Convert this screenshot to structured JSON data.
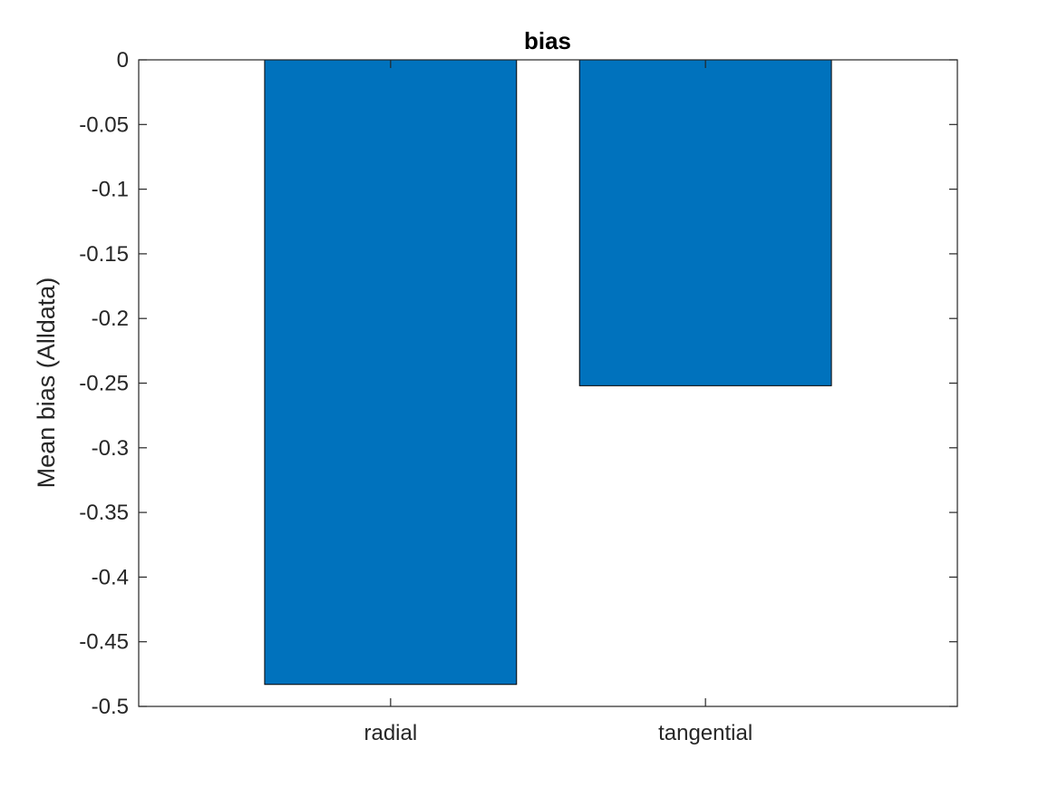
{
  "chart_data": {
    "type": "bar",
    "title": "bias",
    "xlabel": "",
    "ylabel": "Mean bias (Alldata)",
    "categories": [
      "radial",
      "tangential"
    ],
    "values": [
      -0.483,
      -0.252
    ],
    "ylim": [
      -0.5,
      0
    ],
    "yticks": [
      0,
      -0.05,
      -0.1,
      -0.15,
      -0.2,
      -0.25,
      -0.3,
      -0.35,
      -0.4,
      -0.45,
      -0.5
    ],
    "ytick_labels": [
      "0",
      "-0.05",
      "-0.1",
      "-0.15",
      "-0.2",
      "-0.25",
      "-0.3",
      "-0.35",
      "-0.4",
      "-0.45",
      "-0.5"
    ],
    "grid": false,
    "legend": "none",
    "colors": {
      "bar": "#0072BD",
      "bar_edge": "#000000",
      "axis": "#262626",
      "background": "#ffffff"
    }
  }
}
